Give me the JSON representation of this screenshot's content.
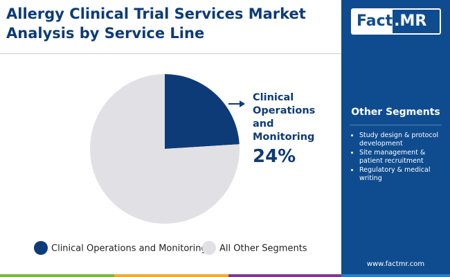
{
  "chart_data": {
    "type": "pie",
    "title": "Allergy Clinical Trial Services Market Analysis by Service Line",
    "categories": [
      "Clinical Operations and Monitoring",
      "All Other Segments"
    ],
    "values": [
      24,
      76
    ],
    "value_labels": [
      "24%",
      null
    ],
    "colors": [
      "#0d3b78",
      "#e1e0e4"
    ]
  },
  "sidebar": {
    "logo": {
      "left": "Fact",
      "right": ".MR"
    },
    "heading": "Other Segments",
    "items": [
      "Study design & protocol development",
      "Site management & patient recruitment",
      "Regulatory & medical writing"
    ],
    "website": "www.factmr.com"
  }
}
